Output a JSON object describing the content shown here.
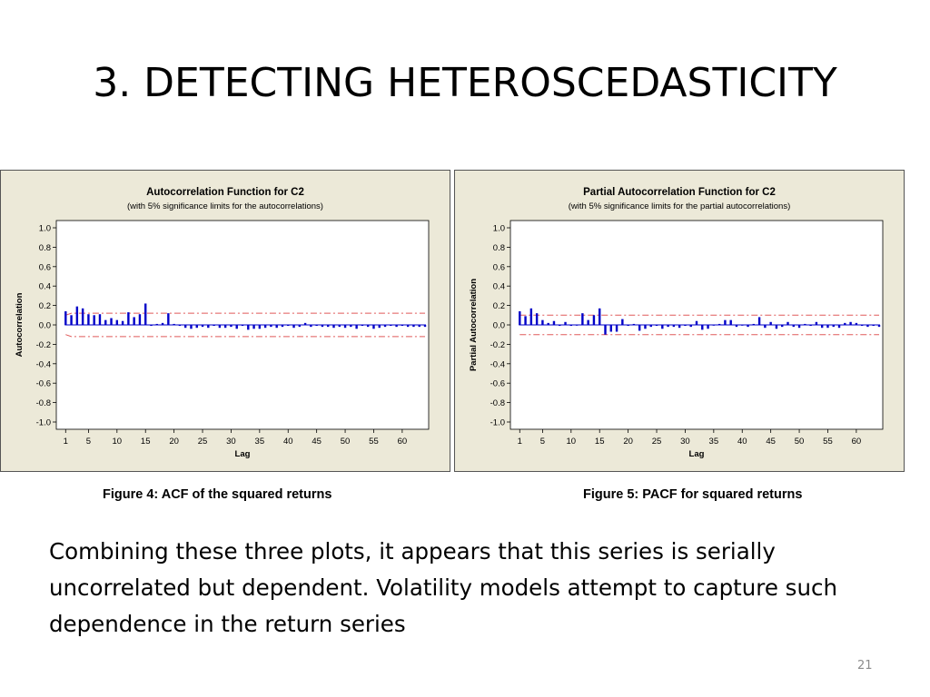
{
  "slide": {
    "title": "3. DETECTING HETEROSCEDASTICITY",
    "body": "Combining these three plots, it appears that this series is serially uncorrelated but dependent.  Volatility models attempt to capture such dependence in the return series",
    "page_number": "21",
    "captions": [
      "Figure 4: ACF of the squared returns",
      "Figure 5: PACF for squared returns"
    ]
  },
  "colors": {
    "panel_bg": "#ece9d8",
    "plot_bg": "#ffffff",
    "bars": "#0000c8",
    "limits": "#e05a5a",
    "axis": "#000000"
  },
  "chart_data": [
    {
      "type": "bar",
      "title": "Autocorrelation Function for C2",
      "subtitle": "(with 5% significance limits for the autocorrelations)",
      "xlabel": "Lag",
      "ylabel": "Autocorrelation",
      "x_ticks": [
        "1",
        "5",
        "10",
        "15",
        "20",
        "25",
        "30",
        "35",
        "40",
        "45",
        "50",
        "55",
        "60"
      ],
      "y_ticks": [
        "1.0",
        "0.8",
        "0.6",
        "0.4",
        "0.2",
        "0.0",
        "-0.2",
        "-0.4",
        "-0.6",
        "-0.8",
        "-1.0"
      ],
      "xlim": [
        0,
        64
      ],
      "ylim": [
        -1.0,
        1.0
      ],
      "lags": [
        1,
        2,
        3,
        4,
        5,
        6,
        7,
        8,
        9,
        10,
        11,
        12,
        13,
        14,
        15,
        16,
        17,
        18,
        19,
        20,
        21,
        22,
        23,
        24,
        25,
        26,
        27,
        28,
        29,
        30,
        31,
        32,
        33,
        34,
        35,
        36,
        37,
        38,
        39,
        40,
        41,
        42,
        43,
        44,
        45,
        46,
        47,
        48,
        49,
        50,
        51,
        52,
        53,
        54,
        55,
        56,
        57,
        58,
        59,
        60,
        61,
        62,
        63,
        64
      ],
      "values": [
        0.14,
        0.1,
        0.19,
        0.17,
        0.11,
        0.1,
        0.11,
        0.05,
        0.07,
        0.05,
        0.04,
        0.13,
        0.08,
        0.11,
        0.22,
        -0.01,
        0.01,
        0.02,
        0.12,
        0.01,
        -0.01,
        -0.03,
        -0.04,
        -0.03,
        -0.02,
        -0.03,
        -0.01,
        -0.03,
        -0.03,
        -0.02,
        -0.04,
        -0.01,
        -0.05,
        -0.04,
        -0.04,
        -0.03,
        -0.02,
        -0.03,
        -0.02,
        -0.01,
        -0.03,
        -0.02,
        0.02,
        -0.02,
        -0.01,
        -0.02,
        -0.02,
        -0.03,
        -0.02,
        -0.03,
        -0.02,
        -0.04,
        -0.01,
        -0.02,
        -0.04,
        -0.03,
        -0.02,
        -0.01,
        -0.02,
        -0.01,
        -0.02,
        -0.02,
        -0.02,
        -0.02
      ],
      "upper_limit": [
        0.1,
        0.12,
        0.12,
        0.12,
        0.12,
        0.12,
        0.12,
        0.12,
        0.12,
        0.12,
        0.12,
        0.12,
        0.12,
        0.12,
        0.12,
        0.12,
        0.12,
        0.12,
        0.12,
        0.12,
        0.12,
        0.12,
        0.12,
        0.12,
        0.12,
        0.12,
        0.12,
        0.12,
        0.12,
        0.12,
        0.12,
        0.12,
        0.12,
        0.12,
        0.12,
        0.12,
        0.12,
        0.12,
        0.12,
        0.12,
        0.12,
        0.12,
        0.12,
        0.12,
        0.12,
        0.12,
        0.12,
        0.12,
        0.12,
        0.12,
        0.12,
        0.12,
        0.12,
        0.12,
        0.12,
        0.12,
        0.12,
        0.12,
        0.12,
        0.12,
        0.12,
        0.12,
        0.12,
        0.12
      ],
      "lower_limit": [
        -0.1,
        -0.12,
        -0.12,
        -0.12,
        -0.12,
        -0.12,
        -0.12,
        -0.12,
        -0.12,
        -0.12,
        -0.12,
        -0.12,
        -0.12,
        -0.12,
        -0.12,
        -0.12,
        -0.12,
        -0.12,
        -0.12,
        -0.12,
        -0.12,
        -0.12,
        -0.12,
        -0.12,
        -0.12,
        -0.12,
        -0.12,
        -0.12,
        -0.12,
        -0.12,
        -0.12,
        -0.12,
        -0.12,
        -0.12,
        -0.12,
        -0.12,
        -0.12,
        -0.12,
        -0.12,
        -0.12,
        -0.12,
        -0.12,
        -0.12,
        -0.12,
        -0.12,
        -0.12,
        -0.12,
        -0.12,
        -0.12,
        -0.12,
        -0.12,
        -0.12,
        -0.12,
        -0.12,
        -0.12,
        -0.12,
        -0.12,
        -0.12,
        -0.12,
        -0.12,
        -0.12,
        -0.12,
        -0.12,
        -0.12
      ]
    },
    {
      "type": "bar",
      "title": "Partial Autocorrelation Function for C2",
      "subtitle": "(with 5% significance limits for the partial autocorrelations)",
      "xlabel": "Lag",
      "ylabel": "Partial Autocorrelation",
      "x_ticks": [
        "1",
        "5",
        "10",
        "15",
        "20",
        "25",
        "30",
        "35",
        "40",
        "45",
        "50",
        "55",
        "60"
      ],
      "y_ticks": [
        "1.0",
        "0.8",
        "0.6",
        "0.4",
        "0.2",
        "0.0",
        "-0.2",
        "-0.4",
        "-0.6",
        "-0.8",
        "-1.0"
      ],
      "xlim": [
        0,
        64
      ],
      "ylim": [
        -1.0,
        1.0
      ],
      "lags": [
        1,
        2,
        3,
        4,
        5,
        6,
        7,
        8,
        9,
        10,
        11,
        12,
        13,
        14,
        15,
        16,
        17,
        18,
        19,
        20,
        21,
        22,
        23,
        24,
        25,
        26,
        27,
        28,
        29,
        30,
        31,
        32,
        33,
        34,
        35,
        36,
        37,
        38,
        39,
        40,
        41,
        42,
        43,
        44,
        45,
        46,
        47,
        48,
        49,
        50,
        51,
        52,
        53,
        54,
        55,
        56,
        57,
        58,
        59,
        60,
        61,
        62,
        63,
        64
      ],
      "values": [
        0.14,
        0.09,
        0.17,
        0.12,
        0.05,
        0.02,
        0.04,
        -0.01,
        0.03,
        -0.01,
        0.0,
        0.12,
        0.05,
        0.1,
        0.17,
        -0.1,
        -0.07,
        -0.07,
        0.06,
        -0.01,
        0.01,
        -0.06,
        -0.04,
        -0.02,
        -0.01,
        -0.04,
        -0.02,
        -0.02,
        -0.03,
        -0.01,
        -0.02,
        0.04,
        -0.05,
        -0.04,
        0.0,
        0.01,
        0.05,
        0.05,
        -0.02,
        0.0,
        -0.02,
        0.01,
        0.08,
        -0.03,
        0.03,
        -0.04,
        -0.02,
        0.03,
        -0.02,
        -0.03,
        0.01,
        -0.01,
        0.03,
        -0.03,
        -0.03,
        -0.02,
        -0.03,
        0.02,
        0.03,
        0.02,
        -0.01,
        -0.02,
        -0.01,
        -0.02
      ],
      "upper_limit": [
        0.1,
        0.1,
        0.1,
        0.1,
        0.1,
        0.1,
        0.1,
        0.1,
        0.1,
        0.1,
        0.1,
        0.1,
        0.1,
        0.1,
        0.1,
        0.1,
        0.1,
        0.1,
        0.1,
        0.1,
        0.1,
        0.1,
        0.1,
        0.1,
        0.1,
        0.1,
        0.1,
        0.1,
        0.1,
        0.1,
        0.1,
        0.1,
        0.1,
        0.1,
        0.1,
        0.1,
        0.1,
        0.1,
        0.1,
        0.1,
        0.1,
        0.1,
        0.1,
        0.1,
        0.1,
        0.1,
        0.1,
        0.1,
        0.1,
        0.1,
        0.1,
        0.1,
        0.1,
        0.1,
        0.1,
        0.1,
        0.1,
        0.1,
        0.1,
        0.1,
        0.1,
        0.1,
        0.1,
        0.1
      ],
      "lower_limit": [
        -0.1,
        -0.1,
        -0.1,
        -0.1,
        -0.1,
        -0.1,
        -0.1,
        -0.1,
        -0.1,
        -0.1,
        -0.1,
        -0.1,
        -0.1,
        -0.1,
        -0.1,
        -0.1,
        -0.1,
        -0.1,
        -0.1,
        -0.1,
        -0.1,
        -0.1,
        -0.1,
        -0.1,
        -0.1,
        -0.1,
        -0.1,
        -0.1,
        -0.1,
        -0.1,
        -0.1,
        -0.1,
        -0.1,
        -0.1,
        -0.1,
        -0.1,
        -0.1,
        -0.1,
        -0.1,
        -0.1,
        -0.1,
        -0.1,
        -0.1,
        -0.1,
        -0.1,
        -0.1,
        -0.1,
        -0.1,
        -0.1,
        -0.1,
        -0.1,
        -0.1,
        -0.1,
        -0.1,
        -0.1,
        -0.1,
        -0.1,
        -0.1,
        -0.1,
        -0.1,
        -0.1,
        -0.1,
        -0.1,
        -0.1
      ]
    }
  ]
}
